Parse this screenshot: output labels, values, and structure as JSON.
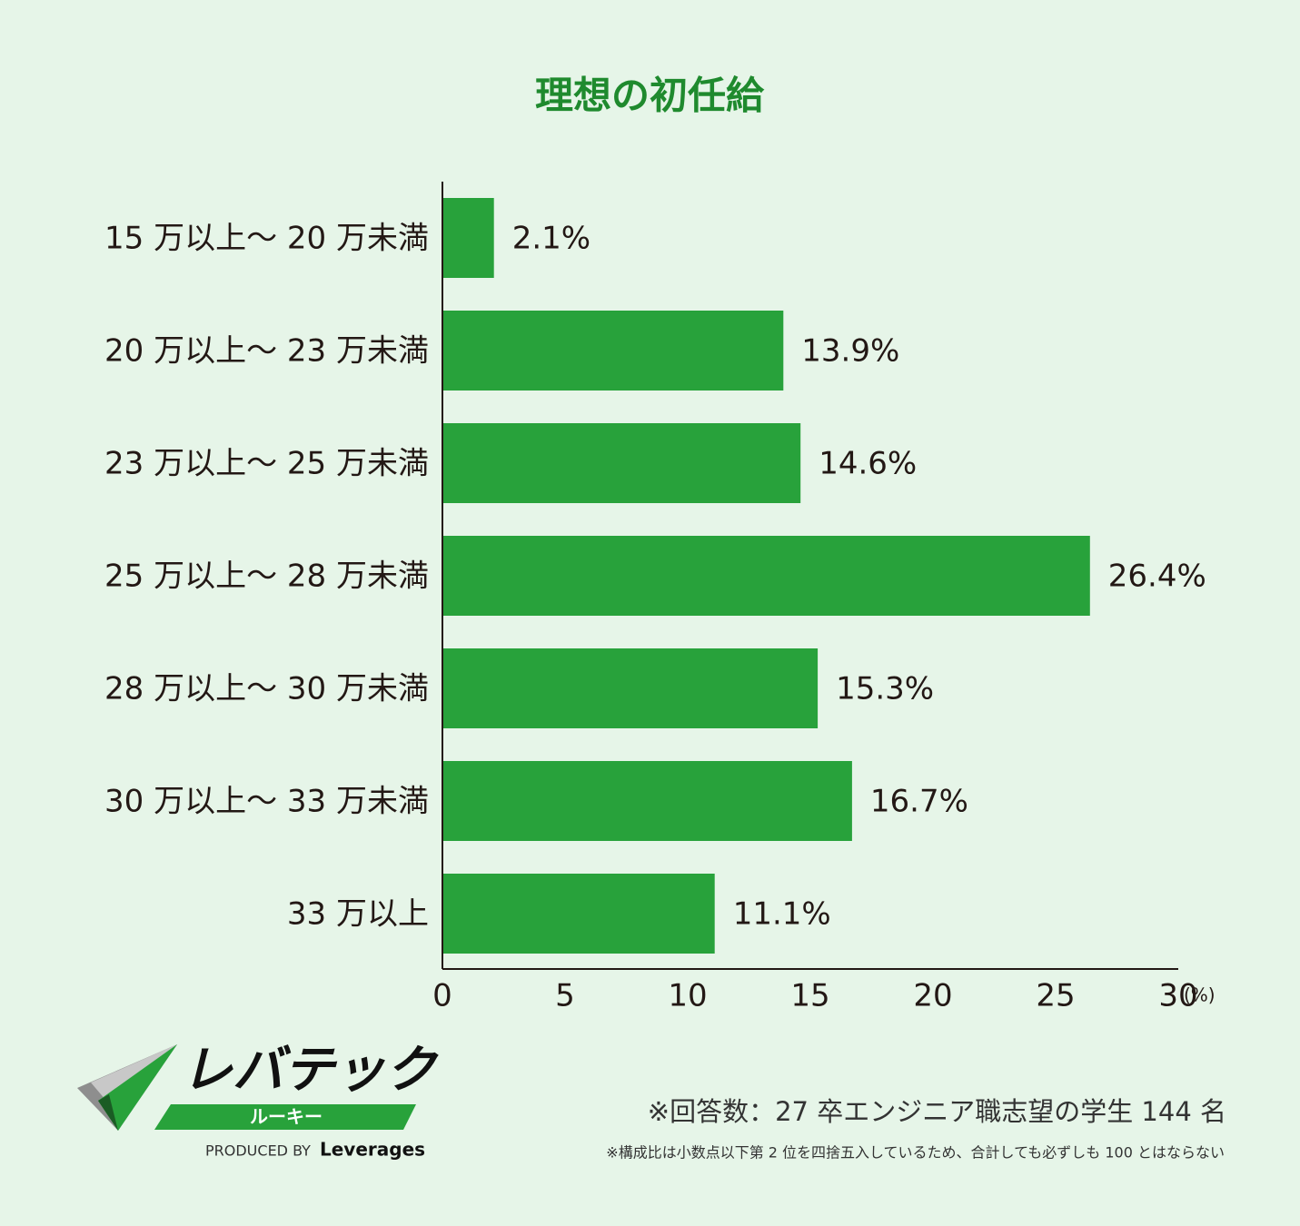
{
  "chart_data": {
    "type": "bar",
    "orientation": "horizontal",
    "title": "理想の初任給",
    "categories": [
      "15 万以上〜 20 万未満",
      "20 万以上〜 23 万未満",
      "23 万以上〜 25 万未満",
      "25 万以上〜 28 万未満",
      "28 万以上〜 30 万未満",
      "30 万以上〜 33 万未満",
      "33 万以上"
    ],
    "values": [
      2.1,
      13.9,
      14.6,
      26.4,
      15.3,
      16.7,
      11.1
    ],
    "value_labels": [
      "2.1%",
      "13.9%",
      "14.6%",
      "26.4%",
      "15.3%",
      "16.7%",
      "11.1%"
    ],
    "color": "#28a23b",
    "xlim": [
      0,
      30
    ],
    "xticks": [
      0,
      5,
      10,
      15,
      20,
      25,
      30
    ],
    "xlabel": "(%)",
    "grid": false
  },
  "footer": {
    "respondents": "※回答数：27 卒エンジニア職志望の学生 144 名",
    "note": "※構成比は小数点以下第 2 位を四捨五入しているため、合計しても必ずしも 100 とはならない"
  },
  "logo": {
    "name": "レバテック",
    "sub": "ルーキー",
    "produced": "PRODUCED BY",
    "brand": "Leverages"
  }
}
